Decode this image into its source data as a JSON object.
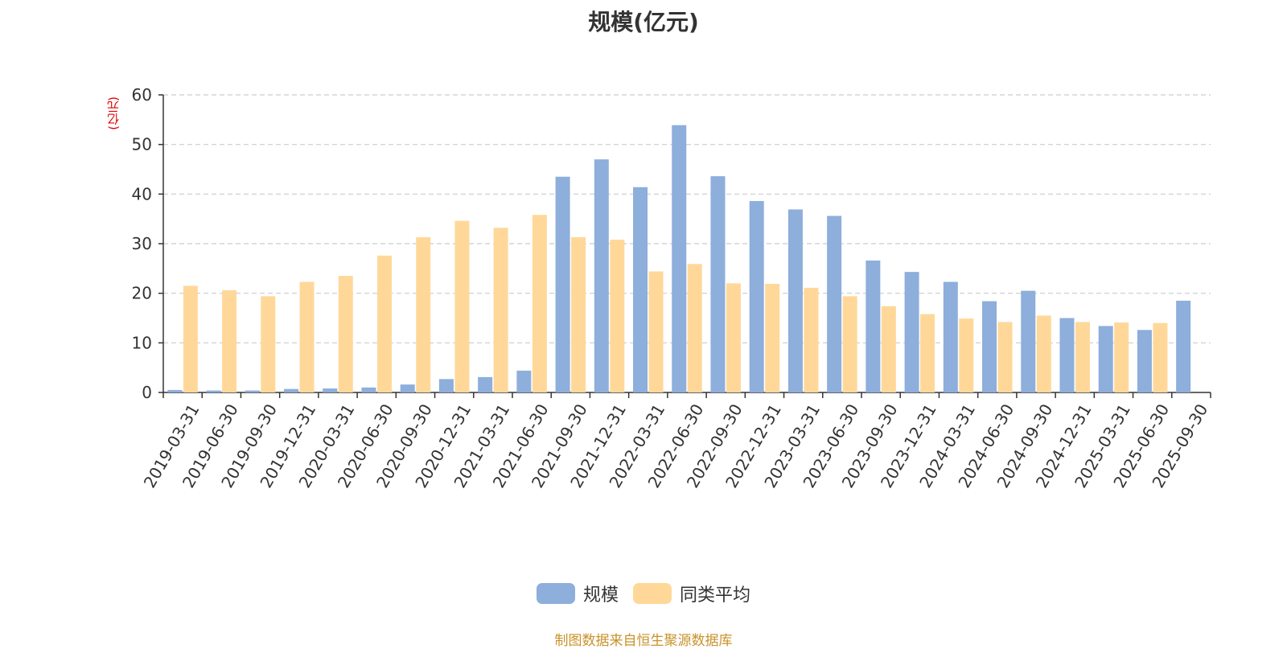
{
  "title": "规模(亿元)",
  "unit_label": "(亿元)",
  "source": "制图数据来自恒生聚源数据库",
  "colors": {
    "scale": "#8eaedb",
    "peer_avg": "#ffd899",
    "grid": "#cccccc",
    "axis": "#333333",
    "unit": "#e00000"
  },
  "chart_data": {
    "type": "bar",
    "title": "规模(亿元)",
    "ylabel": "(亿元)",
    "ylim": [
      0,
      60
    ],
    "yticks": [
      0,
      10,
      20,
      30,
      40,
      50,
      60
    ],
    "grid": true,
    "legend_position": "bottom-center",
    "categories": [
      "2019-03-31",
      "2019-06-30",
      "2019-09-30",
      "2019-12-31",
      "2020-03-31",
      "2020-06-30",
      "2020-09-30",
      "2020-12-31",
      "2021-03-31",
      "2021-06-30",
      "2021-09-30",
      "2021-12-31",
      "2022-03-31",
      "2022-06-30",
      "2022-09-30",
      "2022-12-31",
      "2023-03-31",
      "2023-06-30",
      "2023-09-30",
      "2023-12-31",
      "2024-03-31",
      "2024-06-30",
      "2024-09-30",
      "2024-12-31",
      "2025-03-31",
      "2025-06-30",
      "2025-09-30"
    ],
    "series": [
      {
        "name": "规模",
        "color": "#8eaedb",
        "values": [
          0.5,
          0.4,
          0.4,
          0.7,
          0.8,
          1.0,
          1.6,
          2.7,
          3.1,
          4.4,
          43.5,
          47.0,
          41.4,
          53.9,
          43.6,
          38.6,
          36.9,
          35.6,
          26.6,
          24.3,
          22.3,
          18.4,
          20.5,
          15.0,
          13.4,
          12.6,
          18.5
        ]
      },
      {
        "name": "同类平均",
        "color": "#ffd899",
        "values": [
          21.5,
          20.6,
          19.4,
          22.3,
          23.5,
          27.6,
          31.3,
          34.6,
          33.2,
          35.8,
          31.3,
          30.8,
          24.4,
          25.9,
          22.0,
          21.9,
          21.1,
          19.4,
          17.4,
          15.8,
          14.9,
          14.2,
          15.5,
          14.2,
          14.1,
          14.0,
          null
        ]
      }
    ]
  }
}
